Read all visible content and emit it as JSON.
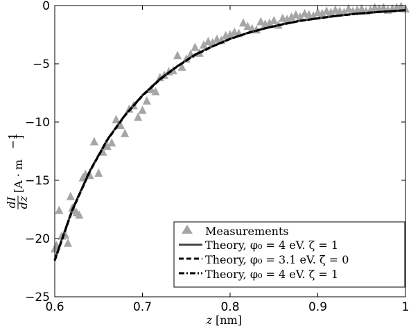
{
  "chart_data": {
    "type": "scatter",
    "xlim": [
      0.6,
      1.0
    ],
    "ylim": [
      -25,
      0
    ],
    "xticks": [
      0.6,
      0.7,
      0.8,
      0.9,
      1.0
    ],
    "xtick_labels": [
      "0.6",
      "0.7",
      "0.8",
      "0.9",
      "1"
    ],
    "yticks": [
      -25,
      -20,
      -15,
      -10,
      -5,
      0
    ],
    "ytick_labels": [
      "−25",
      "−20",
      "−15",
      "−10",
      "−5",
      "0"
    ],
    "xlabel_symbol": "z",
    "xlabel_unit": "[nm]",
    "ylabel_numerator": "dI",
    "ylabel_denominator": "dz",
    "ylabel_unit": "[A · m",
    "ylabel_exponent": "−1",
    "ylabel_unit_close": "]",
    "grid": false,
    "legend_position": "bottom-right",
    "legend_entries": [
      {
        "label": "Measurements",
        "style": "triangle-marker",
        "color": "#a6a6a6"
      },
      {
        "label": "Theory, φ₀ = 4 eV. ζ = 1",
        "style": "solid",
        "color": "#444444"
      },
      {
        "label": "Theory, φ₀ = 3.1 eV. ζ = 0",
        "style": "dashed",
        "color": "#000000"
      },
      {
        "label": "Theory, φ₀ = 4 eV. ζ = 1",
        "style": "dash-dot",
        "color": "#000000"
      }
    ],
    "series": [
      {
        "name": "Measurements",
        "kind": "scatter",
        "color": "#a6a6a6",
        "x": [
          0.6,
          0.602,
          0.605,
          0.608,
          0.612,
          0.615,
          0.618,
          0.62,
          0.622,
          0.625,
          0.628,
          0.632,
          0.635,
          0.64,
          0.645,
          0.65,
          0.655,
          0.66,
          0.665,
          0.67,
          0.675,
          0.68,
          0.685,
          0.69,
          0.695,
          0.7,
          0.705,
          0.71,
          0.715,
          0.72,
          0.725,
          0.73,
          0.735,
          0.74,
          0.745,
          0.75,
          0.755,
          0.76,
          0.765,
          0.77,
          0.775,
          0.78,
          0.785,
          0.79,
          0.795,
          0.8,
          0.805,
          0.81,
          0.815,
          0.82,
          0.825,
          0.83,
          0.835,
          0.84,
          0.845,
          0.85,
          0.855,
          0.86,
          0.865,
          0.87,
          0.875,
          0.88,
          0.885,
          0.89,
          0.895,
          0.9,
          0.905,
          0.91,
          0.915,
          0.92,
          0.925,
          0.93,
          0.935,
          0.94,
          0.945,
          0.95,
          0.955,
          0.96,
          0.965,
          0.97,
          0.975,
          0.98,
          0.985,
          0.99,
          0.995,
          1.0
        ],
        "y": [
          -20.9,
          -20.6,
          -17.6,
          -19.8,
          -19.7,
          -20.4,
          -16.4,
          -17.4,
          -17.6,
          -17.8,
          -18.0,
          -14.8,
          -14.5,
          -14.6,
          -11.7,
          -14.4,
          -12.6,
          -12.1,
          -11.8,
          -9.8,
          -10.3,
          -11.0,
          -8.9,
          -8.6,
          -9.6,
          -9.0,
          -8.2,
          -7.2,
          -7.4,
          -6.2,
          -6.0,
          -5.7,
          -5.6,
          -4.3,
          -5.3,
          -4.6,
          -4.2,
          -3.6,
          -4.1,
          -3.4,
          -3.1,
          -3.2,
          -2.9,
          -3.0,
          -2.6,
          -2.5,
          -2.3,
          -2.4,
          -1.5,
          -1.8,
          -2.0,
          -2.1,
          -1.4,
          -1.6,
          -1.5,
          -1.3,
          -1.7,
          -1.1,
          -1.2,
          -1.0,
          -0.8,
          -1.0,
          -0.7,
          -0.8,
          -0.9,
          -0.6,
          -0.7,
          -0.5,
          -0.6,
          -0.4,
          -0.5,
          -0.6,
          -0.3,
          -0.5,
          -0.4,
          -0.3,
          -0.5,
          -0.4,
          -0.2,
          -0.3,
          -0.2,
          -0.4,
          -0.3,
          -0.2,
          -0.1,
          -0.3
        ]
      },
      {
        "name": "Theory, φ₀ = 4 eV. ζ = 1",
        "kind": "line",
        "style": "solid",
        "color": "#444444",
        "x": [
          0.6,
          0.62,
          0.64,
          0.66,
          0.68,
          0.7,
          0.72,
          0.74,
          0.76,
          0.78,
          0.8,
          0.82,
          0.84,
          0.86,
          0.88,
          0.9,
          0.92,
          0.94,
          0.96,
          0.98,
          1.0
        ],
        "y": [
          -21.8,
          -17.5,
          -14.2,
          -11.5,
          -9.4,
          -7.7,
          -6.3,
          -5.2,
          -4.2,
          -3.5,
          -2.85,
          -2.35,
          -1.95,
          -1.6,
          -1.3,
          -1.1,
          -0.9,
          -0.73,
          -0.6,
          -0.5,
          -0.4
        ]
      },
      {
        "name": "Theory, φ₀ = 3.1 eV. ζ = 0",
        "kind": "line",
        "style": "dashed",
        "color": "#000000",
        "x": [
          0.6,
          0.62,
          0.64,
          0.66,
          0.68,
          0.7,
          0.72,
          0.74,
          0.76,
          0.78,
          0.8,
          0.82,
          0.84,
          0.86,
          0.88,
          0.9,
          0.92,
          0.94,
          0.96,
          0.98,
          1.0
        ],
        "y": [
          -21.9,
          -17.6,
          -14.25,
          -11.55,
          -9.45,
          -7.75,
          -6.35,
          -5.22,
          -4.25,
          -3.52,
          -2.87,
          -2.37,
          -1.96,
          -1.62,
          -1.32,
          -1.1,
          -0.9,
          -0.74,
          -0.6,
          -0.5,
          -0.4
        ]
      },
      {
        "name": "Theory, φ₀ = 4 eV. ζ = 1",
        "kind": "line",
        "style": "dash-dot",
        "color": "#000000",
        "x": [
          0.6,
          0.62,
          0.64,
          0.66,
          0.68,
          0.7,
          0.72,
          0.74,
          0.76,
          0.78,
          0.8,
          0.82,
          0.84,
          0.86,
          0.88,
          0.9,
          0.92,
          0.94,
          0.96,
          0.98,
          1.0
        ],
        "y": [
          -21.85,
          -17.55,
          -14.2,
          -11.5,
          -9.42,
          -7.72,
          -6.32,
          -5.2,
          -4.22,
          -3.5,
          -2.86,
          -2.36,
          -1.95,
          -1.61,
          -1.31,
          -1.1,
          -0.9,
          -0.73,
          -0.6,
          -0.5,
          -0.4
        ]
      }
    ]
  }
}
